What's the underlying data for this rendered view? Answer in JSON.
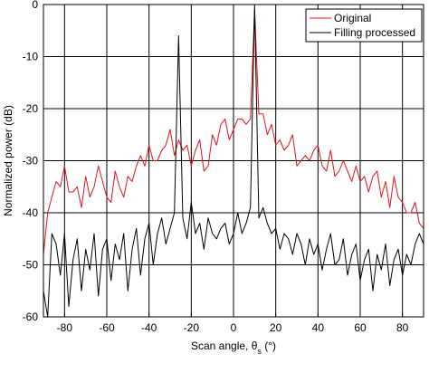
{
  "chart_data": {
    "type": "line",
    "xlabel_main": "Scan angle, θ",
    "xlabel_sub": "s",
    "xlabel_unit": " (°)",
    "ylabel": "Normalized power (dB)",
    "xlim": [
      -90,
      90
    ],
    "ylim": [
      -60,
      0
    ],
    "xticks": [
      -80,
      -60,
      -40,
      -20,
      0,
      20,
      40,
      60,
      80
    ],
    "yticks": [
      0,
      -10,
      -20,
      -30,
      -40,
      -50,
      -60
    ],
    "grid": true,
    "legend_position": "top-right",
    "series": [
      {
        "name": "Original",
        "color": "#e8141c",
        "x": [
          -90,
          -88,
          -86,
          -84,
          -82,
          -80,
          -78,
          -76,
          -74,
          -72,
          -70,
          -68,
          -66,
          -64,
          -62,
          -60,
          -58,
          -56,
          -54,
          -52,
          -50,
          -48,
          -46,
          -44,
          -42,
          -40,
          -38,
          -36,
          -34,
          -32,
          -30,
          -28,
          -26,
          -24,
          -22,
          -20,
          -18,
          -16,
          -14,
          -12,
          -10,
          -8,
          -6,
          -4,
          -2,
          0,
          2,
          4,
          6,
          8,
          10,
          12,
          14,
          16,
          18,
          20,
          22,
          24,
          26,
          28,
          30,
          32,
          34,
          36,
          38,
          40,
          42,
          44,
          46,
          48,
          50,
          52,
          54,
          56,
          58,
          60,
          62,
          64,
          66,
          68,
          70,
          72,
          74,
          76,
          78,
          80,
          82,
          84,
          86,
          88,
          90
        ],
        "y": [
          -48,
          -40,
          -37,
          -34,
          -35,
          -31,
          -36,
          -36,
          -35,
          -39,
          -33,
          -37,
          -35,
          -31,
          -34,
          -37,
          -38,
          -32,
          -35,
          -37,
          -33,
          -34,
          -31,
          -29,
          -31,
          -27,
          -30,
          -30,
          -28,
          -27,
          -24,
          -29,
          -26,
          -28,
          -27,
          -31,
          -28,
          -26,
          -32,
          -31,
          -25,
          -27,
          -23,
          -22,
          -26,
          -24,
          -22,
          -22,
          -23,
          -22,
          -1,
          -21,
          -21,
          -25,
          -23,
          -27,
          -26,
          -28,
          -27,
          -25,
          -31,
          -30,
          -29,
          -30,
          -28,
          -27,
          -31,
          -32,
          -28,
          -33,
          -32,
          -30,
          -32,
          -34,
          -31,
          -34,
          -33,
          -36,
          -33,
          -32,
          -37,
          -34,
          -39,
          -33,
          -37,
          -38,
          -40,
          -40,
          -38,
          -42,
          -43
        ]
      },
      {
        "name": "Filling processed",
        "color": "#000000",
        "x": [
          -90,
          -88,
          -86,
          -84,
          -82,
          -80,
          -78,
          -76,
          -74,
          -72,
          -70,
          -68,
          -66,
          -64,
          -62,
          -60,
          -58,
          -56,
          -54,
          -52,
          -50,
          -48,
          -46,
          -44,
          -42,
          -40,
          -38,
          -36,
          -34,
          -32,
          -30,
          -28,
          -26,
          -24,
          -22,
          -20,
          -18,
          -16,
          -14,
          -12,
          -10,
          -8,
          -6,
          -4,
          -2,
          0,
          2,
          4,
          6,
          8,
          10,
          12,
          14,
          16,
          18,
          20,
          22,
          24,
          26,
          28,
          30,
          32,
          34,
          36,
          38,
          40,
          42,
          44,
          46,
          48,
          50,
          52,
          54,
          56,
          58,
          60,
          62,
          64,
          66,
          68,
          70,
          72,
          74,
          76,
          78,
          80,
          82,
          84,
          86,
          88,
          90
        ],
        "y": [
          -55,
          -60,
          -44,
          -46,
          -52,
          -44,
          -58,
          -49,
          -45,
          -55,
          -47,
          -51,
          -44,
          -56,
          -47,
          -45,
          -53,
          -46,
          -49,
          -44,
          -55,
          -47,
          -43,
          -52,
          -45,
          -42,
          -50,
          -44,
          -41,
          -46,
          -43,
          -40,
          -6,
          -41,
          -45,
          -38,
          -44,
          -42,
          -47,
          -41,
          -44,
          -45,
          -43,
          -42,
          -46,
          -44,
          -40,
          -44,
          -42,
          -39,
          0,
          -41,
          -39,
          -42,
          -44,
          -43,
          -47,
          -44,
          -45,
          -48,
          -44,
          -46,
          -50,
          -45,
          -48,
          -46,
          -51,
          -47,
          -44,
          -50,
          -49,
          -45,
          -52,
          -48,
          -46,
          -53,
          -49,
          -47,
          -55,
          -48,
          -51,
          -46,
          -54,
          -49,
          -47,
          -52,
          -48,
          -50,
          -46,
          -44,
          -46
        ]
      }
    ]
  }
}
